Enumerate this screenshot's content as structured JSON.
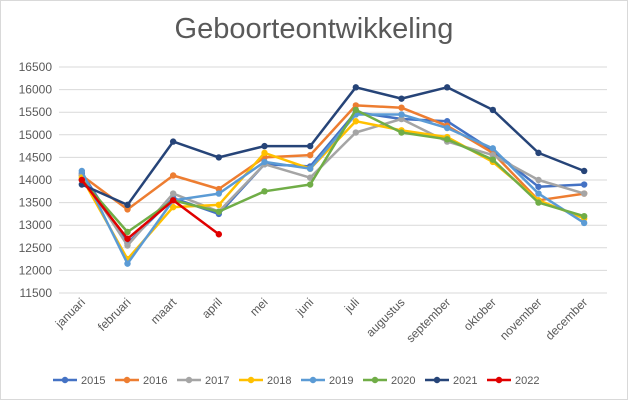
{
  "chart_data": {
    "type": "line",
    "title": "Geboorteontwikkeling",
    "categories": [
      "januari",
      "februari",
      "maart",
      "april",
      "mei",
      "juni",
      "juli",
      "augustus",
      "september",
      "oktober",
      "november",
      "december"
    ],
    "ylim": [
      11500,
      16500
    ],
    "yticks": [
      11500,
      12000,
      12500,
      13000,
      13500,
      14000,
      14500,
      15000,
      15500,
      16000,
      16500
    ],
    "grid": true,
    "legend_position": "bottom",
    "series": [
      {
        "name": "2015",
        "color": "#4472C4",
        "values": [
          14150,
          12600,
          13600,
          13250,
          14350,
          14300,
          15500,
          15350,
          15300,
          14650,
          13850,
          13900
        ]
      },
      {
        "name": "2016",
        "color": "#ED7D31",
        "values": [
          14100,
          13350,
          14100,
          13800,
          14500,
          14550,
          15650,
          15600,
          15200,
          14600,
          13550,
          13700
        ]
      },
      {
        "name": "2017",
        "color": "#A5A5A5",
        "values": [
          14100,
          12550,
          13700,
          13300,
          14350,
          14050,
          15050,
          15350,
          14850,
          14550,
          14000,
          13700
        ]
      },
      {
        "name": "2018",
        "color": "#FFC000",
        "values": [
          14050,
          12250,
          13400,
          13450,
          14600,
          14250,
          15300,
          15100,
          14950,
          14400,
          13550,
          13150
        ]
      },
      {
        "name": "2019",
        "color": "#5B9BD5",
        "values": [
          14200,
          12150,
          13550,
          13700,
          14400,
          14250,
          15450,
          15450,
          15150,
          14700,
          13700,
          13050
        ]
      },
      {
        "name": "2020",
        "color": "#70AD47",
        "values": [
          14000,
          12850,
          13550,
          13300,
          13750,
          13900,
          15550,
          15050,
          14900,
          14450,
          13500,
          13200
        ]
      },
      {
        "name": "2021",
        "color": "#264478",
        "values": [
          13900,
          13450,
          14850,
          14500,
          14750,
          14750,
          16050,
          15800,
          16050,
          15550,
          14600,
          14200
        ]
      },
      {
        "name": "2022",
        "color": "#E00000",
        "values": [
          14000,
          12700,
          13550,
          12800,
          null,
          null,
          null,
          null,
          null,
          null,
          null,
          null
        ]
      }
    ]
  }
}
